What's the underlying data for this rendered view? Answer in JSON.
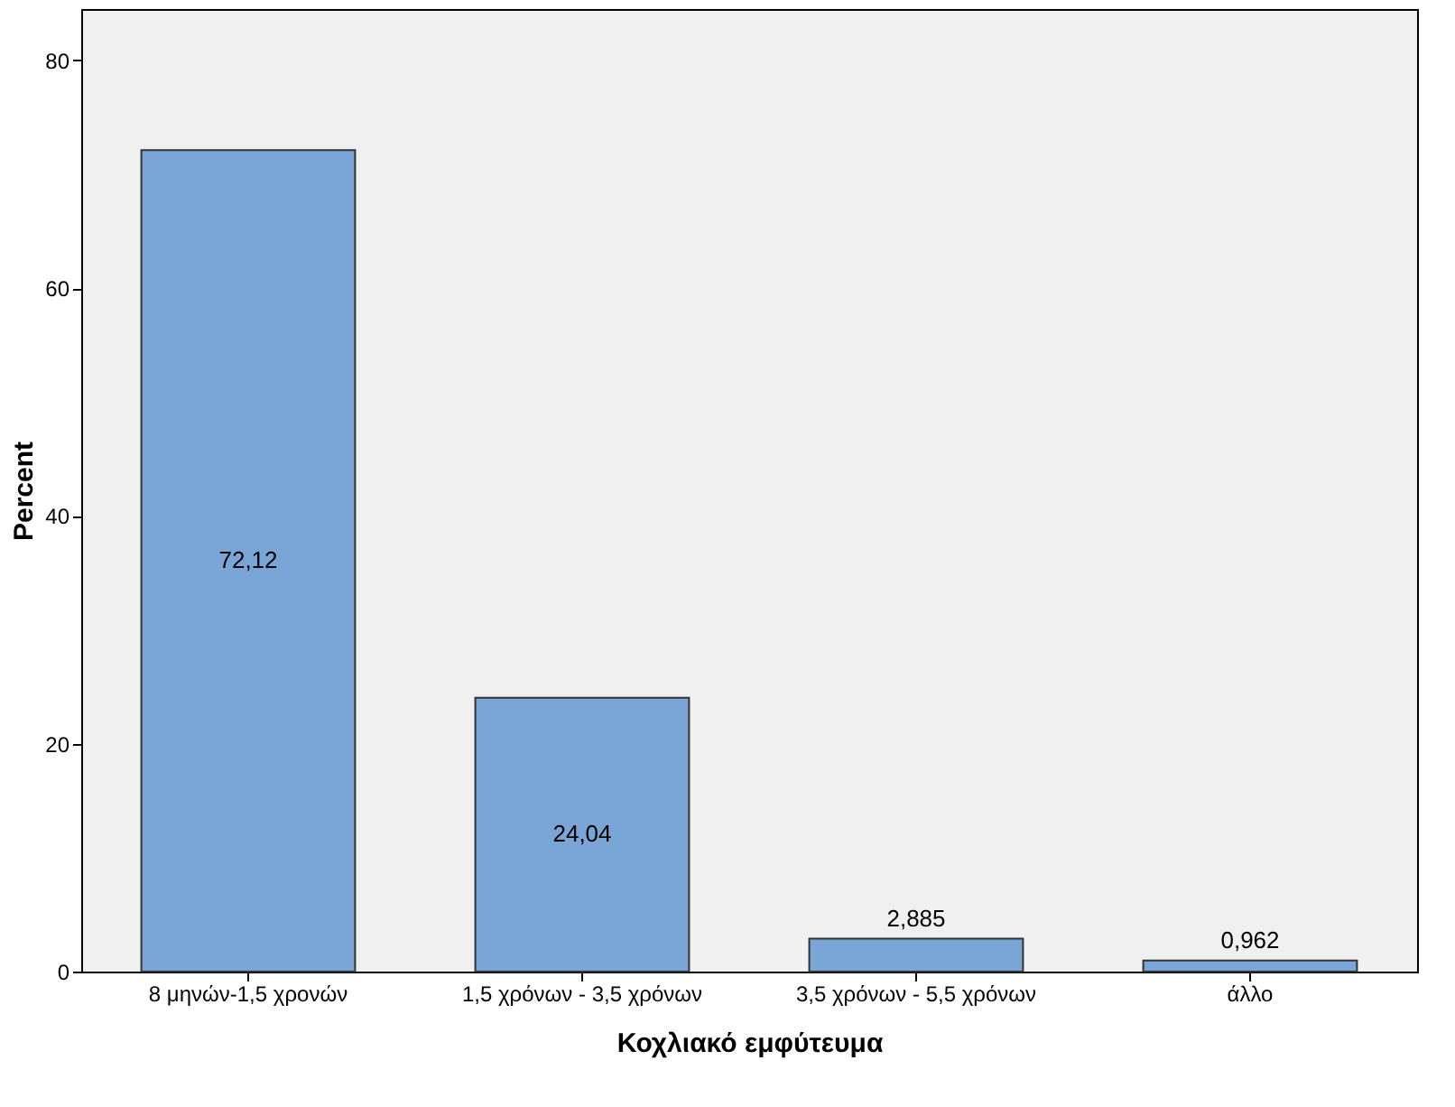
{
  "chart_data": {
    "type": "bar",
    "xlabel": "Κοχλιακό εμφύτευμα",
    "ylabel": "Percent",
    "categories": [
      "8 μηνών-1,5 χρονών",
      "1,5 χρόνων - 3,5 χρόνων",
      "3,5 χρόνων - 5,5 χρόνων",
      "άλλο"
    ],
    "values": [
      72.12,
      24.04,
      2.885,
      0.962
    ],
    "value_labels": [
      "72,12",
      "24,04",
      "2,885",
      "0,962"
    ],
    "color": "#79a6d6",
    "ylim": [
      0,
      84.5
    ],
    "yticks": [
      0,
      20,
      40,
      60,
      80
    ],
    "grid": false
  }
}
